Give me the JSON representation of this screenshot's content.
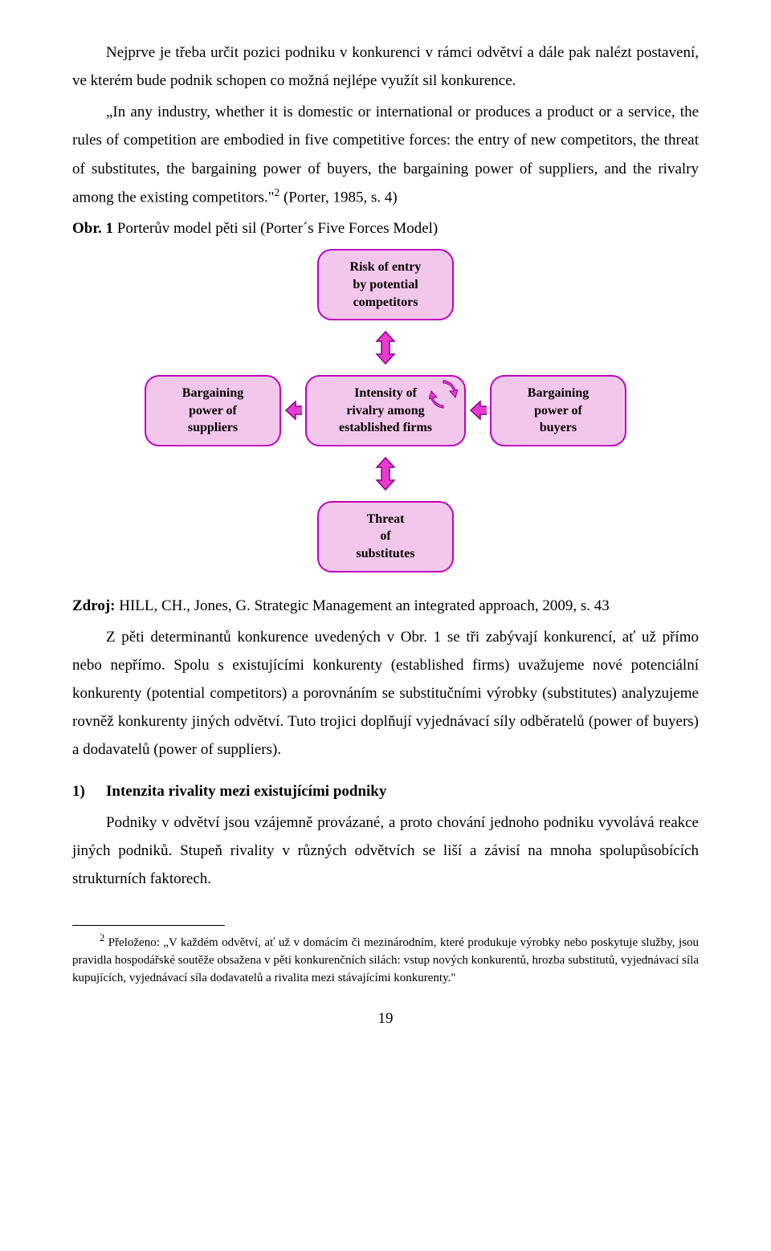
{
  "para1": "Nejprve je třeba určit pozici podniku v konkurenci v rámci odvětví a dále pak nalézt postavení, ve kterém bude podnik schopen co možná nejlépe využít sil konkurence.",
  "para2_pre": "„In any industry, whether it is domestic or international or produces a product or a service, the rules of competition are embodied in five competitive forces: the entry of new competitors, the threat of substitutes, the bargaining power of buyers, the bargaining power of suppliers, and the rivalry among the existing competitors.\"",
  "para2_sup": "2",
  "para2_post": " (Porter, 1985, s. 4)",
  "fig_caption_bold": "Obr. 1",
  "fig_caption_rest": " Porterův model pěti sil (Porter´s Five Forces Model)",
  "diagram": {
    "node_fill": "#f3c7ec",
    "node_border": "#c000c0",
    "arrow_fill": "#e63ccd",
    "arrow_border": "#8a008a",
    "top": {
      "l1": "Risk of entry",
      "l2": "by potential",
      "l3": "competitors"
    },
    "left": {
      "l1": "Bargaining",
      "l2": "power of",
      "l3": "suppliers"
    },
    "center": {
      "l1": "Intensity of",
      "l2": "rivalry among",
      "l3": "established firms"
    },
    "right": {
      "l1": "Bargaining",
      "l2": "power of",
      "l3": "buyers"
    },
    "bottom": {
      "l1": "Threat",
      "l2": "of",
      "l3": "substitutes"
    }
  },
  "source_bold": "Zdroj:",
  "source_rest": " HILL, CH., Jones, G. Strategic Management an integrated approach, 2009, s. 43",
  "para3": "Z pěti determinantů konkurence uvedených v Obr. 1 se tři zabývají konkurencí, ať už přímo nebo nepřímo. Spolu s existujícími konkurenty (established firms) uvažujeme nové potenciální konkurenty (potential competitors) a porovnáním se substitučními výrobky (substitutes) analyzujeme rovněž konkurenty jiných odvětví. Tuto trojici doplňují vyjednávací síly odběratelů (power of buyers) a dodavatelů (power of suppliers).",
  "sec_num": "1)",
  "sec_title": "Intenzita rivality mezi existujícími podniky",
  "para4": "Podniky v odvětví jsou vzájemně provázané, a proto chování jednoho podniku vyvolává reakce jiných podniků. Stupeň rivality v různých odvětvích se liší a závisí na mnoha spolupůsobících strukturních faktorech.",
  "footnote_sup": "2",
  "footnote_body": " Přeloženo: „V každém odvětví, ať už v domácím či mezinárodním, které produkuje výrobky nebo poskytuje služby, jsou pravidla hospodářské soutěže obsažena v pěti konkurenčních silách: vstup nových konkurentů, hrozba substitutů, vyjednávací síla kupujících, vyjednávací síla dodavatelů a rivalita mezi stávajícími konkurenty.\"",
  "pagenum": "19"
}
